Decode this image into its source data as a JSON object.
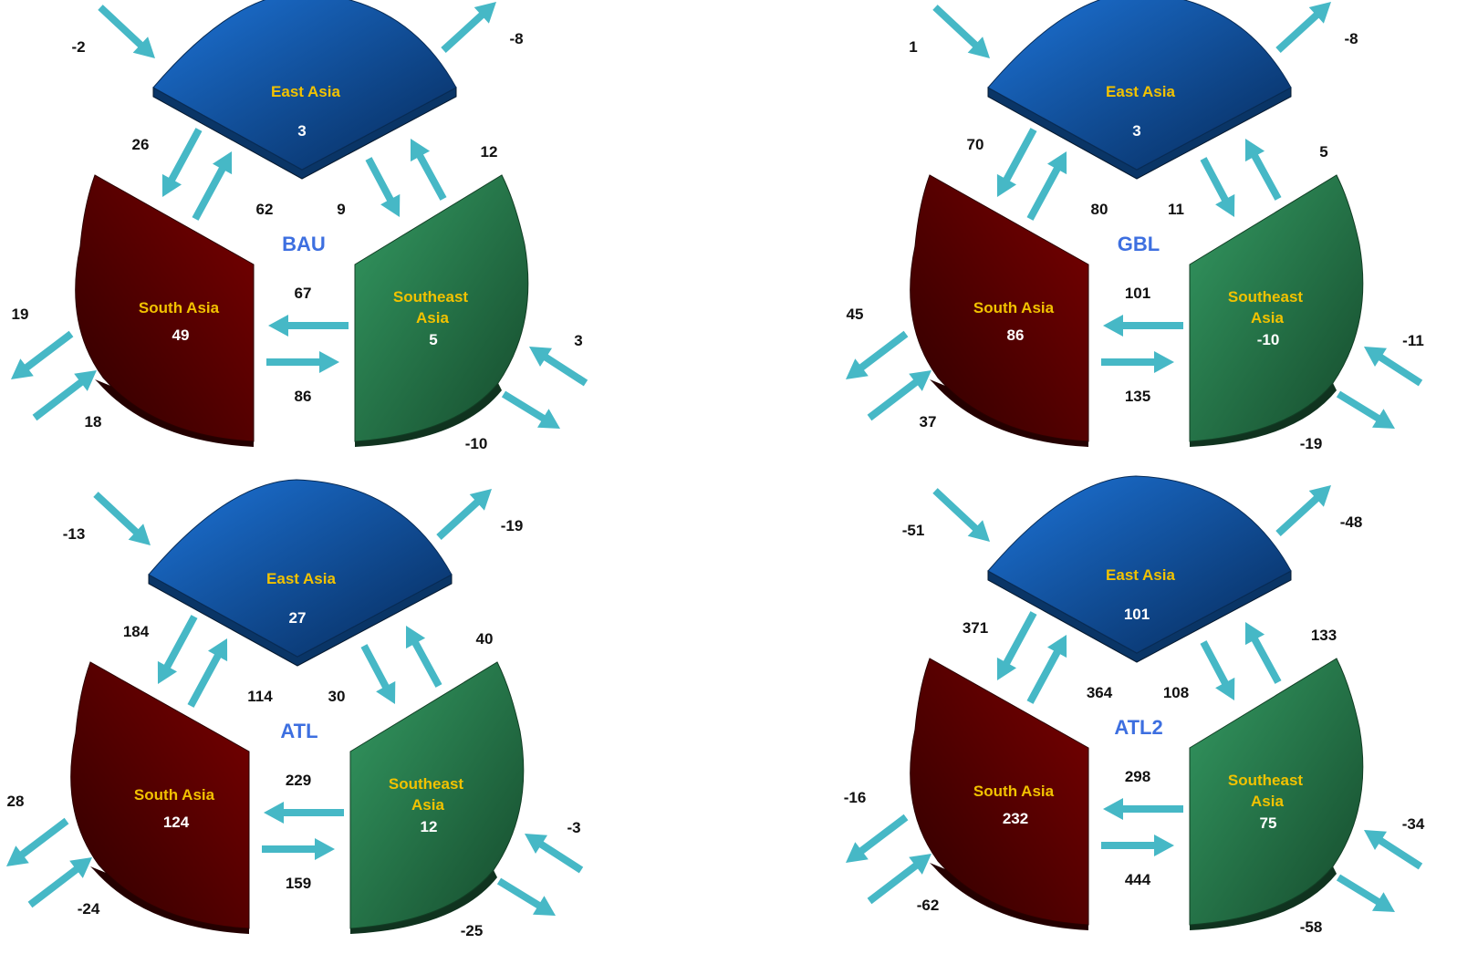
{
  "colors": {
    "arrow": "#46b8c6",
    "east_asia": "#1560c0",
    "south_asia": "#6a0000",
    "southeast_asia": "#2a8050",
    "region_label": "#f2c200",
    "scenario_label": "#3d6fe0"
  },
  "region_names": {
    "east": "East Asia",
    "south": "South Asia",
    "southeast_line1": "Southeast",
    "southeast_line2": "Asia"
  },
  "panels": [
    {
      "scenario": "BAU",
      "east_value": "3",
      "south_value": "49",
      "southeast_value": "5",
      "east_in": "-2",
      "east_out": "-8",
      "east_to_south": "26",
      "south_to_east": "62",
      "east_to_southeast": "9",
      "southeast_to_east": "12",
      "southeast_to_south": "67",
      "south_to_southeast": "86",
      "south_out": "19",
      "south_in": "18",
      "southeast_in": "3",
      "southeast_out": "-10"
    },
    {
      "scenario": "GBL",
      "east_value": "3",
      "south_value": "86",
      "southeast_value": "-10",
      "east_in": "1",
      "east_out": "-8",
      "east_to_south": "70",
      "south_to_east": "80",
      "east_to_southeast": "11",
      "southeast_to_east": "5",
      "southeast_to_south": "101",
      "south_to_southeast": "135",
      "south_out": "45",
      "south_in": "37",
      "southeast_in": "-11",
      "southeast_out": "-19"
    },
    {
      "scenario": "ATL",
      "east_value": "27",
      "south_value": "124",
      "southeast_value": "12",
      "east_in": "-13",
      "east_out": "-19",
      "east_to_south": "184",
      "south_to_east": "114",
      "east_to_southeast": "30",
      "southeast_to_east": "40",
      "southeast_to_south": "229",
      "south_to_southeast": "159",
      "south_out": "28",
      "south_in": "-24",
      "southeast_in": "-3",
      "southeast_out": "-25"
    },
    {
      "scenario": "ATL2",
      "east_value": "101",
      "south_value": "232",
      "southeast_value": "75",
      "east_in": "-51",
      "east_out": "-48",
      "east_to_south": "371",
      "south_to_east": "364",
      "east_to_southeast": "108",
      "southeast_to_east": "133",
      "southeast_to_south": "298",
      "south_to_southeast": "444",
      "south_out": "-16",
      "south_in": "-62",
      "southeast_in": "-34",
      "southeast_out": "-58"
    }
  ]
}
